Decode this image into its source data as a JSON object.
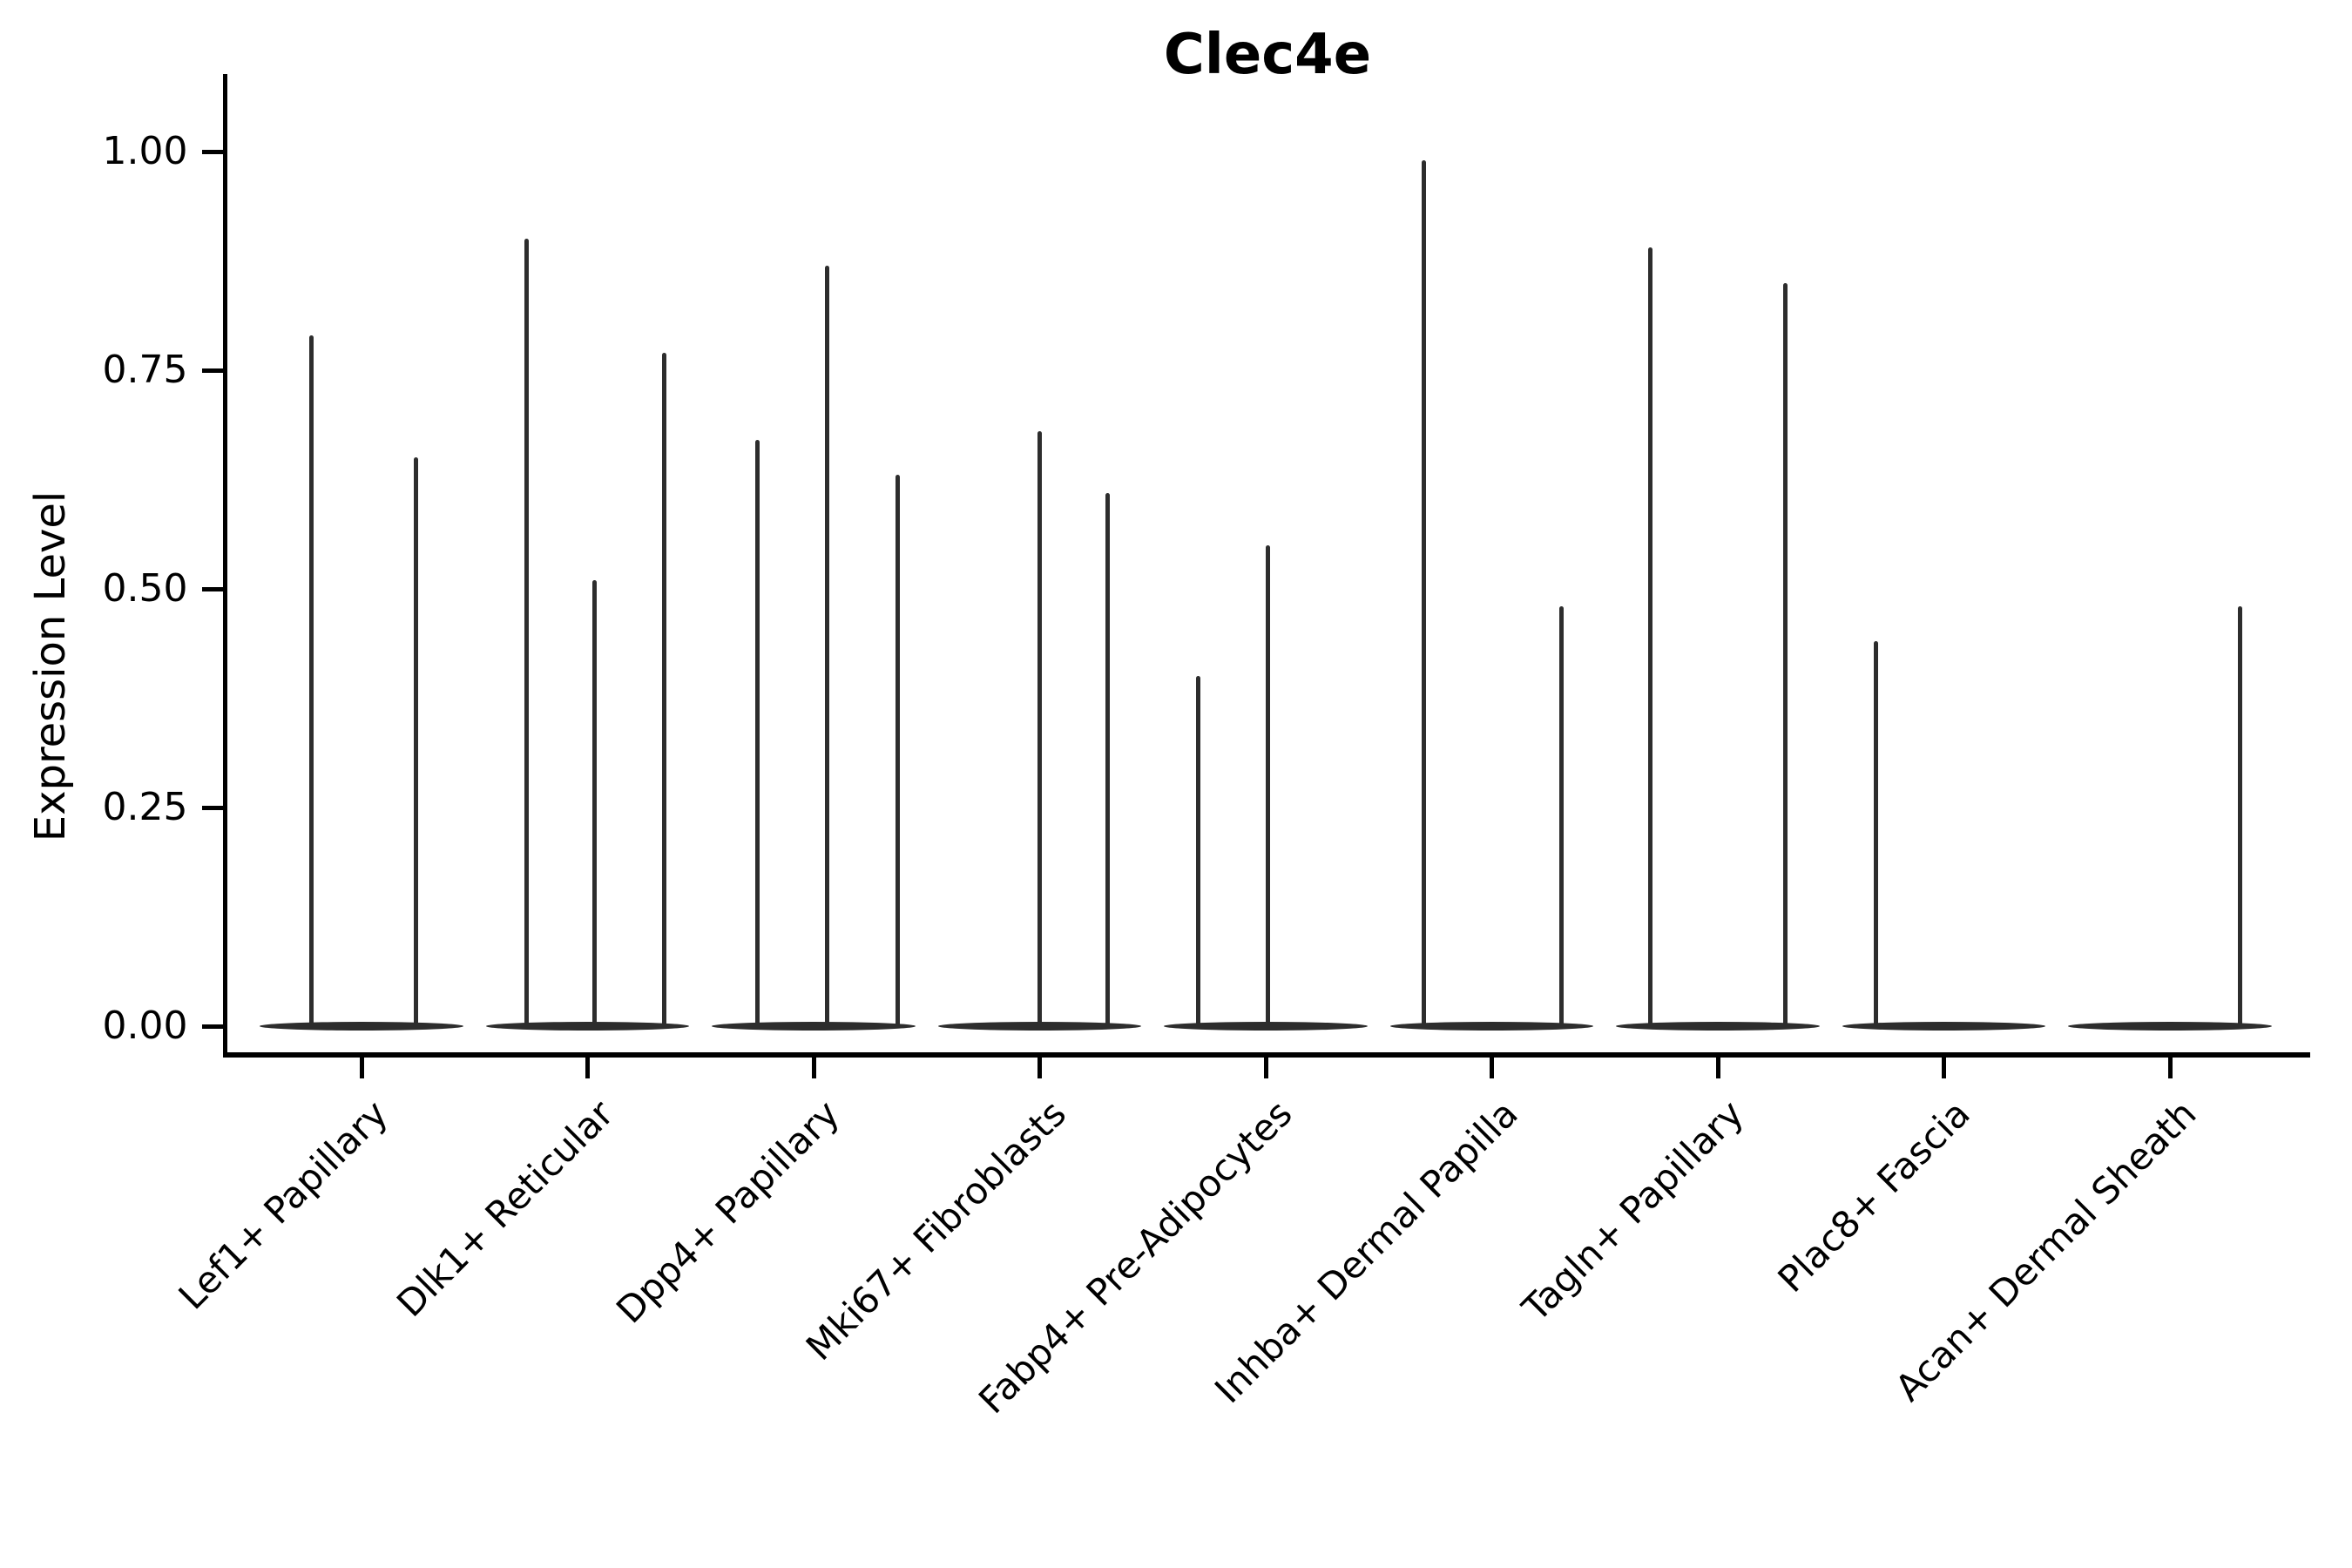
{
  "figure": {
    "title": "Clec4e",
    "ylabel": "Expression Level"
  },
  "colors": {
    "line": "#2d2d2d",
    "axis": "#000000",
    "text": "#000000",
    "background": "#ffffff"
  },
  "chart_data": {
    "type": "violin",
    "title": "Clec4e",
    "xlabel": "",
    "ylabel": "Expression Level",
    "grid": false,
    "legend": "none",
    "ylim": [
      -0.03,
      1.09
    ],
    "ytick_values": [
      1.0,
      0.75,
      0.5,
      0.25,
      0.0
    ],
    "ytick_labels": [
      "1.00",
      "0.75",
      "0.50",
      "0.25",
      "0.00"
    ],
    "categories": [
      "Lef1+ Papillary",
      "Dlk1+ Reticular",
      "Dpp4+ Papillary",
      "Mki67+ Fibroblasts",
      "Fabp4+ Pre-Adipocytes",
      "Inhba+ Dermal Papilla",
      "Tagln+ Papillary",
      "Plac8+ Fascia",
      "Acan+ Dermal Sheath"
    ],
    "base_halfwidth_units": 0.45,
    "series": [
      {
        "category": "Lef1+ Papillary",
        "peaks": [
          {
            "offset_units": -0.22,
            "value": 0.79
          },
          {
            "offset_units": 0.24,
            "value": 0.65
          }
        ]
      },
      {
        "category": "Dlk1+ Reticular",
        "peaks": [
          {
            "offset_units": -0.27,
            "value": 0.9
          },
          {
            "offset_units": 0.03,
            "value": 0.51
          },
          {
            "offset_units": 0.34,
            "value": 0.77
          }
        ]
      },
      {
        "category": "Dpp4+ Papillary",
        "peaks": [
          {
            "offset_units": -0.25,
            "value": 0.67
          },
          {
            "offset_units": 0.06,
            "value": 0.87
          },
          {
            "offset_units": 0.37,
            "value": 0.63
          }
        ]
      },
      {
        "category": "Mki67+ Fibroblasts",
        "peaks": [
          {
            "offset_units": 0.0,
            "value": 0.68
          },
          {
            "offset_units": 0.3,
            "value": 0.61
          }
        ]
      },
      {
        "category": "Fabp4+ Pre-Adipocytes",
        "peaks": [
          {
            "offset_units": -0.3,
            "value": 0.4
          },
          {
            "offset_units": 0.01,
            "value": 0.55
          }
        ]
      },
      {
        "category": "Inhba+ Dermal Papilla",
        "peaks": [
          {
            "offset_units": -0.3,
            "value": 0.99
          },
          {
            "offset_units": 0.31,
            "value": 0.48
          }
        ]
      },
      {
        "category": "Tagln+ Papillary",
        "peaks": [
          {
            "offset_units": -0.3,
            "value": 0.89
          },
          {
            "offset_units": 0.3,
            "value": 0.85
          }
        ]
      },
      {
        "category": "Plac8+ Fascia",
        "peaks": [
          {
            "offset_units": -0.3,
            "value": 0.44
          }
        ]
      },
      {
        "category": "Acan+ Dermal Sheath",
        "peaks": [
          {
            "offset_units": 0.31,
            "value": 0.48
          }
        ]
      }
    ]
  }
}
